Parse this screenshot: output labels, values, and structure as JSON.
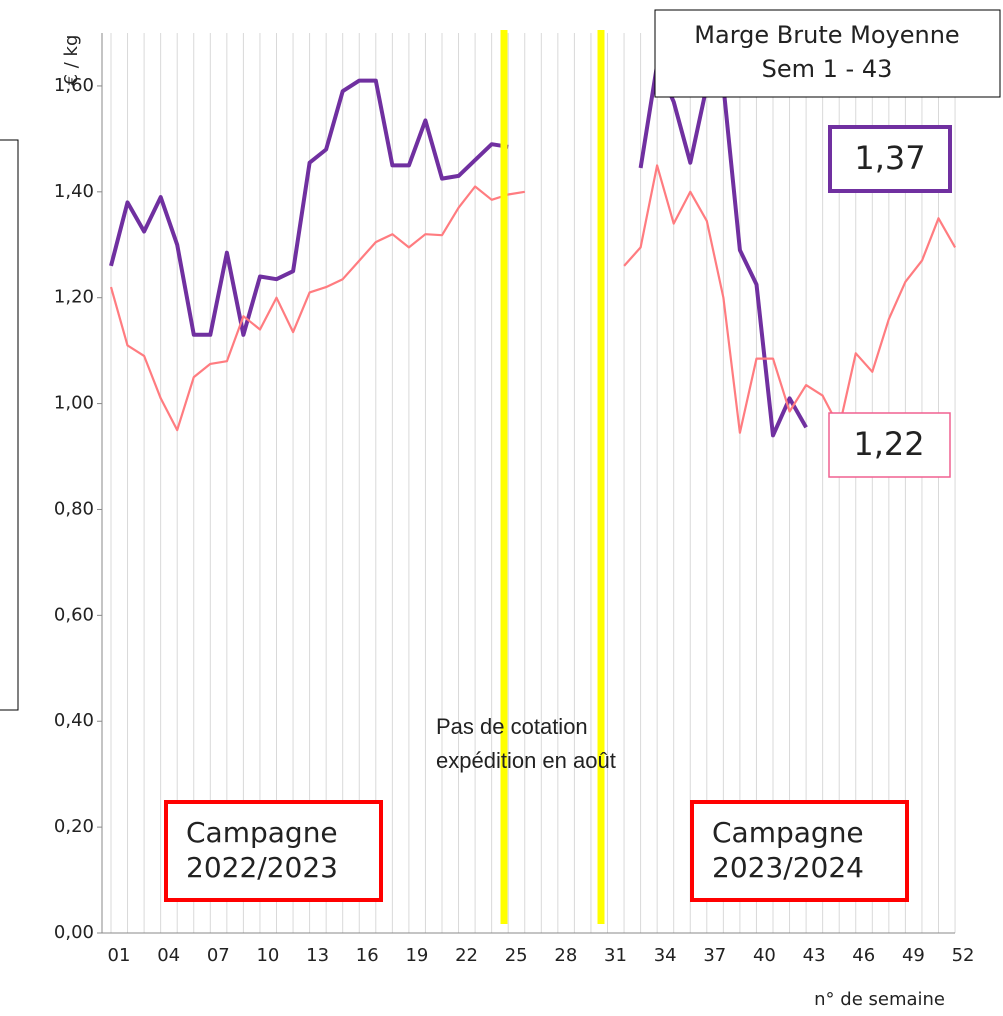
{
  "chart_data": {
    "type": "line",
    "y_label": "€ / kg",
    "x_label": "n° de semaine",
    "categories": [
      "01",
      null,
      null,
      "04",
      null,
      null,
      "07",
      null,
      null,
      "10",
      null,
      null,
      "13",
      null,
      null,
      "16",
      null,
      null,
      "19",
      null,
      null,
      "22",
      null,
      null,
      "25",
      null,
      null,
      "28",
      null,
      null,
      "31",
      null,
      null,
      "34",
      null,
      null,
      "37",
      null,
      null,
      "40",
      null,
      null,
      "43",
      null,
      null,
      "46",
      null,
      null,
      "49",
      null,
      null,
      "52"
    ],
    "series": [
      {
        "color": "#7030a0",
        "values": [
          1.26,
          1.38,
          1.325,
          1.39,
          1.3,
          1.13,
          1.13,
          1.285,
          1.13,
          1.24,
          1.235,
          1.25,
          1.455,
          1.48,
          1.59,
          1.61,
          1.61,
          1.45,
          1.45,
          1.535,
          1.425,
          1.43,
          1.46,
          1.49,
          1.485,
          null,
          null,
          null,
          null,
          null,
          null,
          null,
          1.445,
          1.64,
          1.57,
          1.455,
          1.6,
          1.6,
          1.29,
          1.225,
          0.94,
          1.01,
          0.955,
          null,
          null,
          null,
          null,
          null,
          null,
          null,
          null,
          null
        ]
      },
      {
        "color": "#ff7c80",
        "values": [
          1.22,
          1.11,
          1.09,
          1.01,
          0.95,
          1.05,
          1.075,
          1.08,
          1.165,
          1.14,
          1.2,
          1.135,
          1.21,
          1.22,
          1.235,
          1.27,
          1.305,
          1.32,
          1.295,
          1.32,
          1.318,
          1.37,
          1.41,
          1.385,
          1.395,
          1.4,
          null,
          null,
          null,
          null,
          null,
          1.26,
          1.295,
          1.45,
          1.34,
          1.4,
          1.345,
          1.2,
          0.945,
          1.085,
          1.085,
          0.985,
          1.035,
          1.015,
          0.955,
          1.095,
          1.06,
          1.16,
          1.23,
          1.27,
          1.35,
          1.295
        ]
      }
    ],
    "ylim": [
      0,
      1.7
    ],
    "yticks": [
      {
        "value": 0,
        "label": "0,00"
      },
      {
        "value": 0.2,
        "label": "0,20"
      },
      {
        "value": 0.4,
        "label": "0,40"
      },
      {
        "value": 0.6,
        "label": "0,60"
      },
      {
        "value": 0.8,
        "label": "0,80"
      },
      {
        "value": 1,
        "label": "1,00"
      },
      {
        "value": 1.2,
        "label": "1,20"
      },
      {
        "value": 1.4,
        "label": "1,40"
      },
      {
        "value": 1.6,
        "label": "1,60"
      }
    ],
    "grid": true,
    "annotations": {
      "title_line1": "Marge Brute Moyenne",
      "title_line2": "Sem 1 - 43",
      "purple_value": "1,37",
      "pink_value": "1,22",
      "campaign1_line1": "Campagne",
      "campaign1_line2": "2022/2023",
      "campaign2_line1": "Campagne",
      "campaign2_line2": "2023/2024",
      "gap_line1": "Pas de cotation",
      "gap_line2": "expédition en août"
    }
  }
}
